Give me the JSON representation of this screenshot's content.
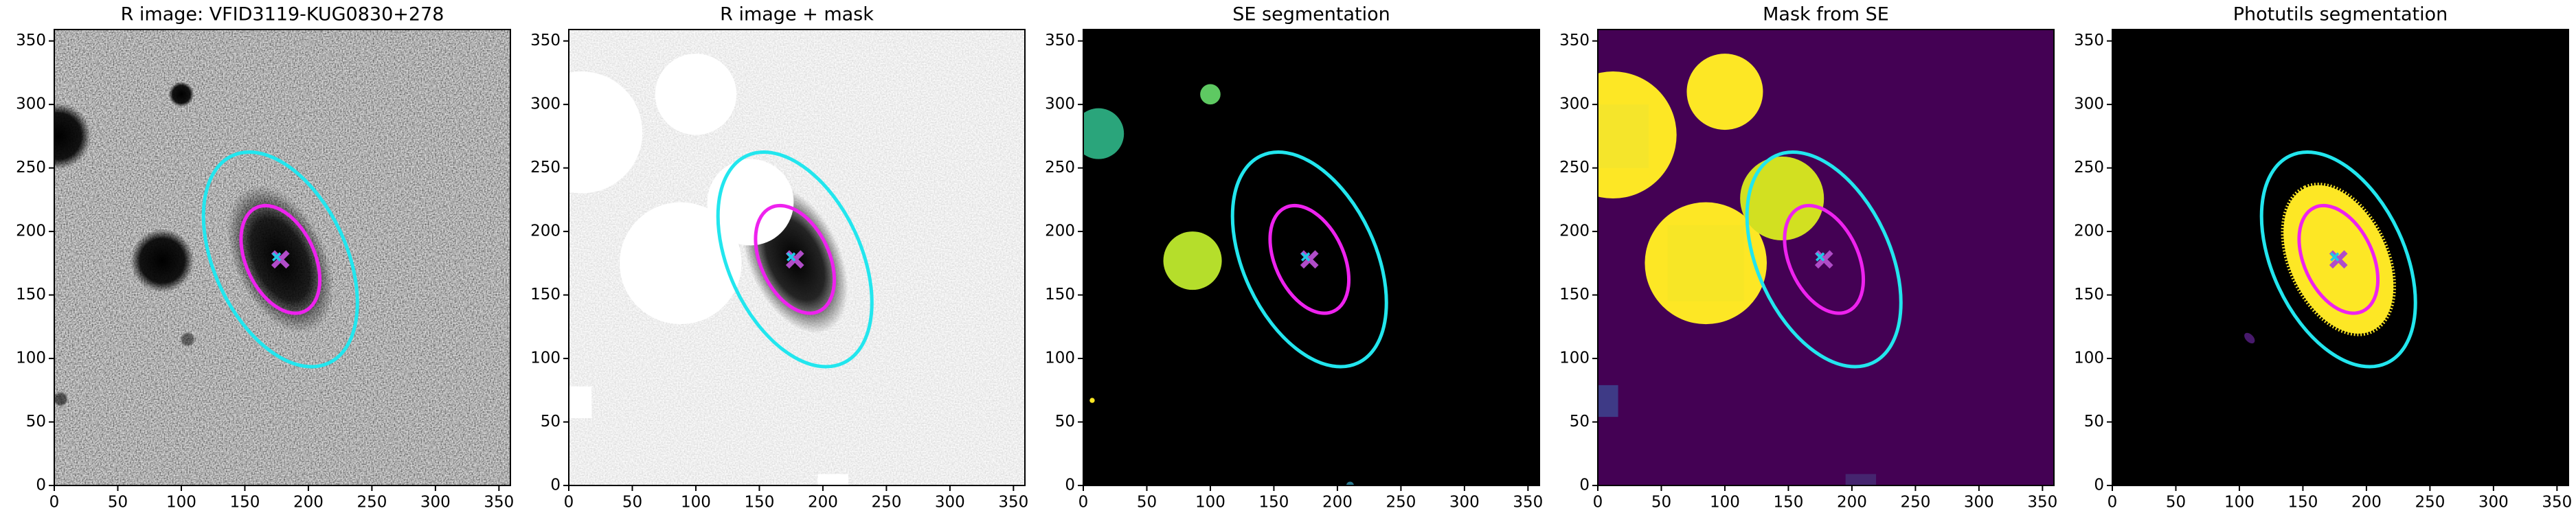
{
  "chart_data": [
    {
      "type": "image",
      "title": "R image: VFID3119-KUG0830+278",
      "xlim": [
        0,
        359
      ],
      "ylim": [
        0,
        359
      ],
      "xticks": [
        0,
        50,
        100,
        150,
        200,
        250,
        300,
        350
      ],
      "yticks": [
        0,
        50,
        100,
        150,
        200,
        250,
        300,
        350
      ],
      "ellipses": [
        {
          "cx": 178,
          "cy": 178,
          "a": 90,
          "b": 52,
          "angle": 115,
          "color": "#22e6ee"
        },
        {
          "cx": 178,
          "cy": 178,
          "a": 45,
          "b": 27,
          "angle": 115,
          "color": "#ee22ee"
        }
      ],
      "markers": [
        {
          "x": 178,
          "y": 178,
          "size": 12,
          "color": "#b04cc8"
        },
        {
          "x": 175,
          "y": 180,
          "size": 6,
          "color": "#22c8e6"
        }
      ]
    },
    {
      "type": "image",
      "title": "R image + mask",
      "xlim": [
        0,
        359
      ],
      "ylim": [
        0,
        359
      ],
      "xticks": [
        0,
        50,
        100,
        150,
        200,
        250,
        300,
        350
      ],
      "yticks": [
        0,
        50,
        100,
        150,
        200,
        250,
        300,
        350
      ],
      "ellipses": [
        {
          "cx": 178,
          "cy": 178,
          "a": 90,
          "b": 52,
          "angle": 115,
          "color": "#22e6ee"
        },
        {
          "cx": 178,
          "cy": 178,
          "a": 45,
          "b": 27,
          "angle": 115,
          "color": "#ee22ee"
        }
      ],
      "markers": [
        {
          "x": 178,
          "y": 178,
          "size": 12,
          "color": "#b04cc8"
        },
        {
          "x": 175,
          "y": 180,
          "size": 6,
          "color": "#22c8e6"
        }
      ]
    },
    {
      "type": "image",
      "title": "SE segmentation",
      "xlim": [
        0,
        359
      ],
      "ylim": [
        0,
        359
      ],
      "xticks": [
        0,
        50,
        100,
        150,
        200,
        250,
        300,
        350
      ],
      "yticks": [
        0,
        50,
        100,
        150,
        200,
        250,
        300,
        350
      ],
      "ellipses": [
        {
          "cx": 178,
          "cy": 178,
          "a": 90,
          "b": 52,
          "angle": 115,
          "color": "#22e6ee"
        },
        {
          "cx": 178,
          "cy": 178,
          "a": 45,
          "b": 27,
          "angle": 115,
          "color": "#ee22ee"
        }
      ],
      "markers": [
        {
          "x": 178,
          "y": 178,
          "size": 12,
          "color": "#b04cc8"
        },
        {
          "x": 175,
          "y": 180,
          "size": 6,
          "color": "#22c8e6"
        }
      ]
    },
    {
      "type": "image",
      "title": "Mask from SE",
      "xlim": [
        0,
        359
      ],
      "ylim": [
        0,
        359
      ],
      "xticks": [
        0,
        50,
        100,
        150,
        200,
        250,
        300,
        350
      ],
      "yticks": [
        0,
        50,
        100,
        150,
        200,
        250,
        300,
        350
      ],
      "ellipses": [
        {
          "cx": 178,
          "cy": 178,
          "a": 90,
          "b": 52,
          "angle": 115,
          "color": "#22e6ee"
        },
        {
          "cx": 178,
          "cy": 178,
          "a": 45,
          "b": 27,
          "angle": 115,
          "color": "#ee22ee"
        }
      ],
      "markers": [
        {
          "x": 178,
          "y": 178,
          "size": 12,
          "color": "#b04cc8"
        },
        {
          "x": 175,
          "y": 180,
          "size": 6,
          "color": "#22c8e6"
        }
      ]
    },
    {
      "type": "image",
      "title": "Photutils segmentation",
      "xlim": [
        0,
        359
      ],
      "ylim": [
        0,
        359
      ],
      "xticks": [
        0,
        50,
        100,
        150,
        200,
        250,
        300,
        350
      ],
      "yticks": [
        0,
        50,
        100,
        150,
        200,
        250,
        300,
        350
      ],
      "ellipses": [
        {
          "cx": 178,
          "cy": 178,
          "a": 90,
          "b": 52,
          "angle": 115,
          "color": "#22e6ee"
        },
        {
          "cx": 178,
          "cy": 178,
          "a": 45,
          "b": 27,
          "angle": 115,
          "color": "#ee22ee"
        }
      ],
      "markers": [
        {
          "x": 178,
          "y": 178,
          "size": 12,
          "color": "#b04cc8"
        },
        {
          "x": 175,
          "y": 180,
          "size": 6,
          "color": "#22c8e6"
        }
      ]
    }
  ]
}
